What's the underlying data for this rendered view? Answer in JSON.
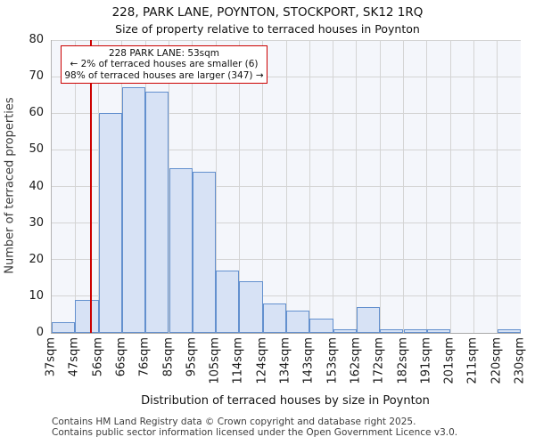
{
  "title": "228, PARK LANE, POYNTON, STOCKPORT, SK12 1RQ",
  "subtitle": "Size of property relative to terraced houses in Poynton",
  "annotation": {
    "line1": "228 PARK LANE: 53sqm",
    "line2": "← 2% of terraced houses are smaller (6)",
    "line3": "98% of terraced houses are larger (347) →"
  },
  "chart_data": {
    "type": "bar",
    "title": "Size of property relative to terraced houses in Poynton",
    "xlabel": "Distribution of terraced houses by size in Poynton",
    "ylabel": "Number of terraced properties",
    "bin_edges_sqm": [
      37,
      47,
      56,
      66,
      76,
      85,
      95,
      105,
      114,
      124,
      134,
      143,
      153,
      162,
      172,
      182,
      191,
      201,
      211,
      220,
      230
    ],
    "tick_labels": [
      "37sqm",
      "47sqm",
      "56sqm",
      "66sqm",
      "76sqm",
      "85sqm",
      "95sqm",
      "105sqm",
      "114sqm",
      "124sqm",
      "134sqm",
      "143sqm",
      "153sqm",
      "162sqm",
      "172sqm",
      "182sqm",
      "191sqm",
      "201sqm",
      "211sqm",
      "220sqm",
      "230sqm"
    ],
    "values": [
      3,
      9,
      60,
      67,
      66,
      45,
      44,
      17,
      14,
      8,
      6,
      4,
      1,
      7,
      1,
      1,
      1,
      0,
      0,
      1
    ],
    "marker_value_sqm": 53,
    "ylim": [
      0,
      80
    ],
    "yticks": [
      0,
      10,
      20,
      30,
      40,
      50,
      60,
      70,
      80
    ],
    "grid": true,
    "legend": false,
    "colors": {
      "bar_fill": "#d7e2f5",
      "bar_edge": "#6390ce",
      "marker_line": "#cc0000",
      "annotation_border": "#cc0000",
      "plot_bg": "#f4f6fb",
      "grid_line": "#d4d4d4"
    }
  },
  "footer": {
    "line1": "Contains HM Land Registry data © Crown copyright and database right 2025.",
    "line2": "Contains public sector information licensed under the Open Government Licence v3.0."
  }
}
